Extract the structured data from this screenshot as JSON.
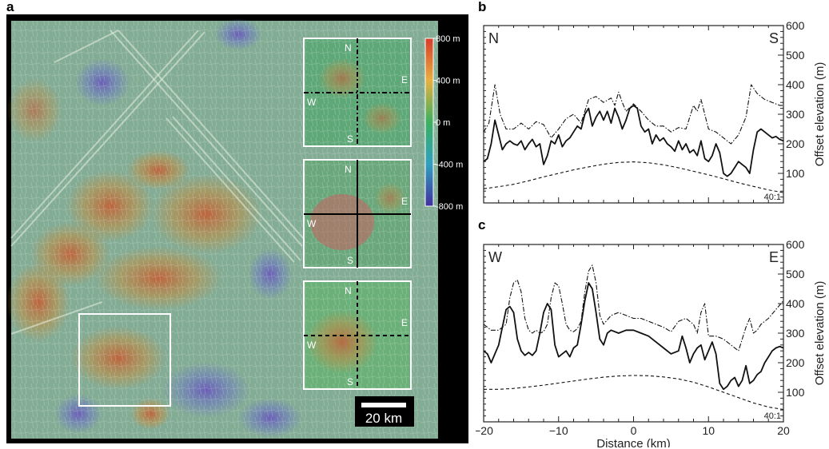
{
  "panels": {
    "a": "a",
    "b": "b",
    "c": "c"
  },
  "map": {
    "colorbar_labels": [
      "800 m",
      "400 m",
      "0 m",
      "-400 m",
      "-800 m"
    ],
    "colorbar_colors": [
      "#d83a2a",
      "#e8b040",
      "#3cb060",
      "#30a0c0",
      "#4030a0"
    ],
    "inset_labels": {
      "n": "N",
      "s": "S",
      "w": "W",
      "e": "E"
    },
    "scale_bar_label": "20 km"
  },
  "chart_data": [
    {
      "type": "line",
      "panel": "b",
      "x_range": [
        -20,
        20
      ],
      "y_range": [
        0,
        600
      ],
      "y_ticks": [
        100,
        200,
        300,
        400,
        500,
        600
      ],
      "ylabel": "Offset elevation (m)",
      "left_label": "N",
      "right_label": "S",
      "ratio_label": "40:1",
      "series": [
        {
          "style": "dash-dot",
          "x": [
            -20,
            -19.3,
            -18.5,
            -17.8,
            -17,
            -16,
            -15,
            -14,
            -13,
            -12,
            -11,
            -10,
            -9,
            -8,
            -7,
            -6,
            -5,
            -4,
            -3,
            -2.5,
            -2,
            -1.5,
            -1,
            0,
            1,
            2,
            3,
            4,
            5,
            6,
            7,
            8,
            8.5,
            9,
            9.5,
            10,
            11,
            12,
            13,
            14,
            15,
            15.7,
            16.5,
            17.5,
            18.5,
            19.5,
            20
          ],
          "y": [
            240,
            270,
            400,
            300,
            250,
            250,
            270,
            250,
            275,
            265,
            220,
            250,
            285,
            300,
            270,
            350,
            360,
            340,
            355,
            330,
            375,
            340,
            310,
            335,
            310,
            280,
            260,
            260,
            240,
            255,
            250,
            330,
            310,
            350,
            300,
            250,
            240,
            220,
            200,
            230,
            290,
            400,
            370,
            350,
            340,
            330,
            330
          ]
        },
        {
          "style": "solid",
          "x": [
            -20,
            -19.5,
            -19,
            -18.5,
            -18,
            -17.5,
            -17,
            -16.5,
            -16,
            -15.5,
            -15,
            -14.5,
            -14,
            -13.5,
            -13,
            -12.5,
            -12,
            -11.5,
            -11,
            -10.5,
            -10,
            -9.5,
            -9,
            -8.5,
            -8,
            -7.5,
            -7,
            -6.5,
            -6,
            -5.5,
            -5,
            -4.5,
            -4,
            -3.5,
            -3,
            -2.5,
            -2,
            -1.5,
            -1,
            -0.5,
            0,
            0.5,
            1,
            1.5,
            2,
            2.5,
            3,
            3.5,
            4,
            4.5,
            5,
            5.5,
            6,
            6.5,
            7,
            7.5,
            8,
            8.5,
            9,
            9.5,
            10,
            10.5,
            11,
            11.5,
            12,
            12.5,
            13,
            13.5,
            14,
            14.5,
            15,
            15.5,
            16,
            16.5,
            17,
            17.5,
            18,
            18.5,
            19,
            19.5,
            20
          ],
          "y": [
            140,
            150,
            200,
            280,
            230,
            180,
            200,
            210,
            200,
            195,
            210,
            180,
            200,
            215,
            190,
            200,
            130,
            160,
            210,
            200,
            230,
            190,
            210,
            220,
            240,
            260,
            250,
            300,
            320,
            260,
            290,
            310,
            280,
            310,
            270,
            320,
            290,
            250,
            280,
            320,
            330,
            320,
            260,
            240,
            250,
            200,
            230,
            210,
            220,
            200,
            190,
            175,
            210,
            180,
            200,
            170,
            180,
            160,
            210,
            150,
            140,
            160,
            200,
            170,
            100,
            90,
            100,
            120,
            140,
            130,
            120,
            100,
            180,
            240,
            250,
            240,
            230,
            220,
            225,
            215,
            210
          ]
        },
        {
          "style": "dashed",
          "x": [
            -20,
            -18,
            -16,
            -14,
            -12,
            -10,
            -8,
            -6,
            -4,
            -2,
            0,
            2,
            4,
            6,
            8,
            10,
            12,
            14,
            16,
            18,
            20
          ],
          "y": [
            48,
            55,
            63,
            75,
            88,
            100,
            112,
            122,
            131,
            137,
            139,
            136,
            129,
            119,
            107,
            95,
            82,
            68,
            56,
            44,
            35
          ]
        }
      ]
    },
    {
      "type": "line",
      "panel": "c",
      "x_range": [
        -20,
        20
      ],
      "x_ticks": [
        -20,
        -10,
        0,
        10,
        20
      ],
      "x_tick_labels": [
        "−20",
        "−10",
        "0",
        "10",
        "20"
      ],
      "y_range": [
        0,
        600
      ],
      "y_ticks": [
        100,
        200,
        300,
        400,
        500,
        600
      ],
      "xlabel": "Distance (km)",
      "ylabel": "Offset elevation (m)",
      "left_label": "W",
      "right_label": "E",
      "ratio_label": "40:1",
      "series": [
        {
          "style": "dash-dot",
          "x": [
            -20,
            -19,
            -18,
            -17,
            -16.5,
            -16,
            -15.5,
            -15,
            -14.5,
            -14,
            -13.5,
            -13,
            -12.5,
            -12,
            -11.5,
            -11,
            -10.5,
            -10,
            -9.5,
            -9,
            -8.5,
            -8,
            -7.5,
            -7,
            -6.5,
            -6,
            -5.5,
            -5,
            -4.5,
            -4,
            -3,
            -2,
            -1,
            0,
            1,
            2,
            3,
            4,
            5,
            6,
            7,
            8,
            8.5,
            9,
            9.5,
            10,
            11,
            12,
            13,
            14,
            15,
            15.5,
            16,
            16.5,
            17,
            18,
            19,
            20
          ],
          "y": [
            330,
            310,
            310,
            330,
            420,
            470,
            480,
            440,
            350,
            310,
            300,
            310,
            300,
            305,
            330,
            420,
            470,
            460,
            400,
            330,
            310,
            305,
            315,
            340,
            440,
            510,
            530,
            470,
            360,
            330,
            360,
            370,
            360,
            350,
            350,
            340,
            330,
            320,
            305,
            340,
            350,
            330,
            300,
            370,
            400,
            290,
            290,
            280,
            260,
            240,
            320,
            350,
            300,
            310,
            330,
            350,
            380,
            410
          ]
        },
        {
          "style": "solid",
          "x": [
            -20,
            -19.5,
            -19,
            -18.5,
            -18,
            -17.5,
            -17,
            -16.5,
            -16,
            -15.5,
            -15,
            -14.5,
            -14,
            -13.5,
            -13,
            -12.5,
            -12,
            -11.5,
            -11,
            -10.5,
            -10,
            -9.5,
            -9,
            -8.5,
            -8,
            -7.5,
            -7,
            -6.5,
            -6,
            -5.5,
            -5,
            -4.5,
            -4,
            -3.5,
            -3,
            -2,
            -1,
            0,
            1,
            2,
            3,
            4,
            5,
            6,
            6.5,
            7,
            7.5,
            8,
            8.5,
            9,
            9.5,
            10,
            10.5,
            11,
            11.5,
            12,
            12.5,
            13,
            13.5,
            14,
            14.5,
            15,
            15.5,
            16,
            16.5,
            17,
            17.5,
            18,
            18.5,
            19,
            19.5,
            20
          ],
          "y": [
            240,
            230,
            200,
            230,
            260,
            320,
            380,
            390,
            370,
            280,
            240,
            225,
            235,
            225,
            240,
            300,
            370,
            400,
            380,
            260,
            220,
            230,
            240,
            220,
            250,
            260,
            330,
            410,
            470,
            450,
            370,
            280,
            260,
            300,
            310,
            300,
            310,
            310,
            300,
            290,
            270,
            250,
            230,
            240,
            290,
            250,
            200,
            230,
            250,
            260,
            210,
            240,
            270,
            230,
            130,
            110,
            120,
            140,
            150,
            120,
            140,
            190,
            130,
            140,
            160,
            170,
            200,
            220,
            240,
            250,
            255,
            250
          ]
        },
        {
          "style": "dashed",
          "x": [
            -20,
            -18,
            -16,
            -14,
            -12,
            -10,
            -8,
            -6,
            -4,
            -2,
            0,
            2,
            4,
            6,
            8,
            10,
            12,
            14,
            16,
            18,
            20
          ],
          "y": [
            110,
            110,
            113,
            118,
            124,
            131,
            138,
            145,
            151,
            155,
            157,
            156,
            152,
            145,
            134,
            118,
            100,
            82,
            64,
            50,
            42
          ]
        }
      ]
    }
  ]
}
